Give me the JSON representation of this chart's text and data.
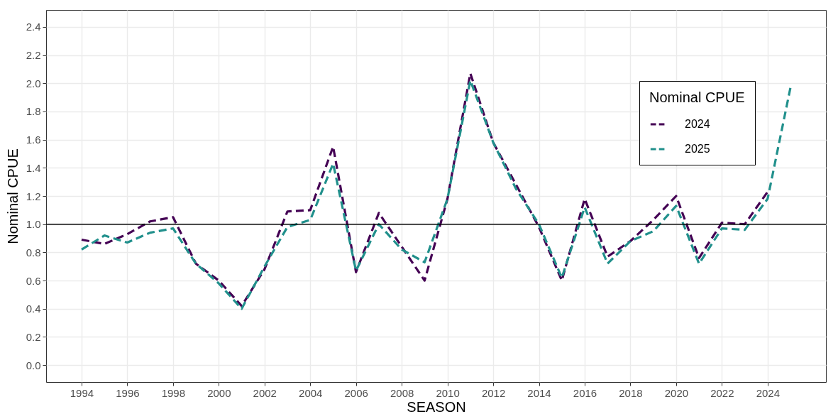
{
  "chart_data": {
    "type": "line",
    "xlabel": "SEASON",
    "ylabel": "Nominal CPUE",
    "legend_title": "Nominal CPUE",
    "x": [
      1994,
      1995,
      1996,
      1997,
      1998,
      1999,
      2000,
      2001,
      2002,
      2003,
      2004,
      2005,
      2006,
      2007,
      2008,
      2009,
      2010,
      2011,
      2012,
      2013,
      2014,
      2015,
      2016,
      2017,
      2018,
      2019,
      2020,
      2021,
      2022,
      2023,
      2024,
      2025
    ],
    "series": [
      {
        "name": "2024",
        "color": "#440154",
        "values": [
          0.89,
          0.86,
          0.93,
          1.02,
          1.05,
          0.72,
          0.6,
          0.42,
          0.68,
          1.09,
          1.1,
          1.55,
          0.66,
          1.08,
          0.84,
          0.6,
          1.18,
          2.07,
          1.58,
          1.28,
          0.98,
          0.6,
          1.18,
          0.77,
          0.88,
          1.03,
          1.2,
          0.76,
          1.01,
          1.0,
          1.23,
          null
        ]
      },
      {
        "name": "2025",
        "color": "#21908c",
        "values": [
          0.82,
          0.92,
          0.87,
          0.94,
          0.97,
          0.72,
          0.58,
          0.4,
          0.7,
          0.98,
          1.03,
          1.43,
          0.67,
          1.0,
          0.82,
          0.73,
          1.18,
          2.02,
          1.58,
          1.25,
          1.0,
          0.62,
          1.12,
          0.72,
          0.88,
          0.95,
          1.13,
          0.72,
          0.97,
          0.96,
          1.18,
          1.97
        ]
      }
    ],
    "xlim": [
      1992.45,
      2026.55
    ],
    "xticks": [
      1994,
      1996,
      1998,
      2000,
      2002,
      2004,
      2006,
      2008,
      2010,
      2012,
      2014,
      2016,
      2018,
      2020,
      2022,
      2024
    ],
    "ylim": [
      -0.12,
      2.52
    ],
    "yticks": [
      {
        "value": 0,
        "label": "0.0"
      },
      0.2,
      0.4,
      0.6,
      0.8,
      {
        "value": 1,
        "label": "1.0"
      },
      1.2,
      1.4,
      1.6,
      1.8,
      {
        "value": 2,
        "label": "2.0"
      },
      2.2,
      2.4
    ],
    "ref_lines": [
      {
        "axis": "y",
        "value": 1.0,
        "color": "#000000"
      }
    ],
    "grid": true,
    "legend": "top right",
    "line_style": "dashed",
    "marker": "none"
  }
}
